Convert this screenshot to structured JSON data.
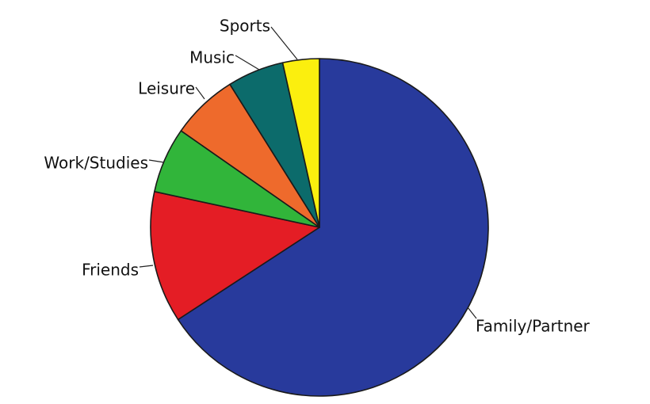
{
  "chart_data": {
    "type": "pie",
    "title": "",
    "start": "12 o'clock",
    "direction": "clockwise",
    "slices": [
      {
        "label": "Family/Partner",
        "value": 65.8,
        "color": "#283a9c"
      },
      {
        "label": "Friends",
        "value": 12.6,
        "color": "#e41d25"
      },
      {
        "label": "Work/Studies",
        "value": 6.3,
        "color": "#31b53a"
      },
      {
        "label": "Leisure",
        "value": 6.4,
        "color": "#ee6a2c"
      },
      {
        "label": "Music",
        "value": 5.4,
        "color": "#0c6b6b"
      },
      {
        "label": "Sports",
        "value": 3.5,
        "color": "#fbef0e"
      }
    ],
    "unit": "percent",
    "legend": "none (direct labels with leader lines)"
  }
}
